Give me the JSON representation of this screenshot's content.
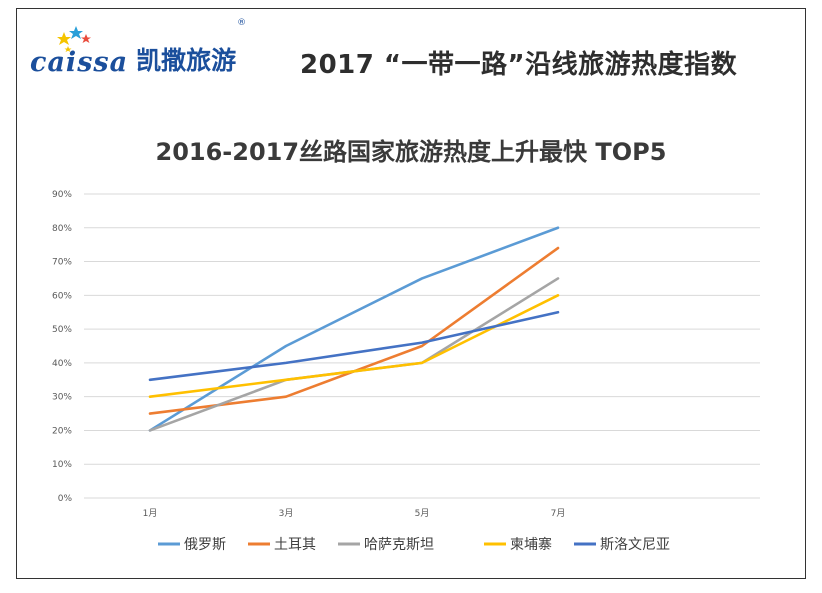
{
  "brand": {
    "latin": "caissa",
    "chinese": "凯撒旅游",
    "reg": "®"
  },
  "header": {
    "title": "2017 “一带一路”沿线旅游热度指数"
  },
  "colors": {
    "russia": "#5b9bd5",
    "turkey": "#ed7d31",
    "kazakhstan": "#a5a5a5",
    "cambodia": "#ffc000",
    "slovenia": "#4472c4",
    "grid": "#d9d9d9",
    "brand": "#1b4f9c"
  },
  "chart_data": {
    "type": "line",
    "title": "2016-2017丝路国家旅游热度上升最快 TOP5",
    "categories": [
      "1月",
      "3月",
      "5月",
      "7月"
    ],
    "y_ticks": [
      "0%",
      "10%",
      "20%",
      "30%",
      "40%",
      "50%",
      "60%",
      "70%",
      "80%",
      "90%"
    ],
    "ylim": [
      0,
      90
    ],
    "grid": true,
    "legend_position": "bottom",
    "series": [
      {
        "name": "俄罗斯",
        "values": [
          20,
          45,
          65,
          80
        ]
      },
      {
        "name": "土耳其",
        "values": [
          25,
          30,
          45,
          74
        ]
      },
      {
        "name": "哈萨克斯坦",
        "values": [
          20,
          35,
          40,
          65
        ]
      },
      {
        "name": "柬埔寨",
        "values": [
          30,
          35,
          40,
          60
        ]
      },
      {
        "name": "斯洛文尼亚",
        "values": [
          35,
          40,
          46,
          55
        ]
      }
    ]
  }
}
